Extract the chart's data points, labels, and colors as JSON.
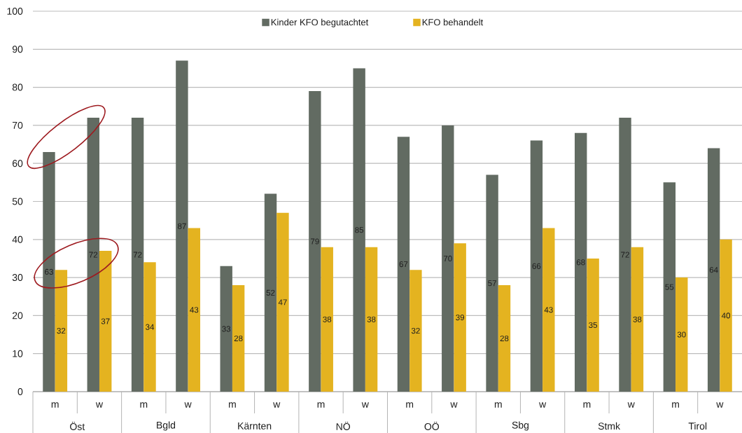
{
  "chart_data": {
    "type": "bar",
    "categories": [
      "m",
      "w",
      "m",
      "w",
      "m",
      "w",
      "m",
      "w",
      "m",
      "w",
      "m",
      "w",
      "m",
      "w",
      "m",
      "w"
    ],
    "series": [
      {
        "name": "Kinder KFO begutachtet",
        "color": "#626b62",
        "values": [
          63,
          72,
          72,
          87,
          33,
          52,
          79,
          85,
          67,
          70,
          57,
          66,
          68,
          72,
          55,
          64
        ]
      },
      {
        "name": "KFO behandelt",
        "color": "#e4b320",
        "values": [
          32,
          37,
          34,
          43,
          28,
          47,
          38,
          38,
          32,
          39,
          28,
          43,
          35,
          38,
          30,
          40
        ]
      }
    ],
    "ylim": [
      0,
      100
    ],
    "yticks": [
      0,
      10,
      20,
      30,
      40,
      50,
      60,
      70,
      80,
      90,
      100
    ],
    "grid": "y",
    "legend": "top",
    "data_labels": true,
    "annotations": [
      "Öst",
      "Bgld",
      "Kärnten",
      "NÖ",
      "OÖ",
      "Sbg",
      "Stmk",
      "Tirol"
    ]
  }
}
